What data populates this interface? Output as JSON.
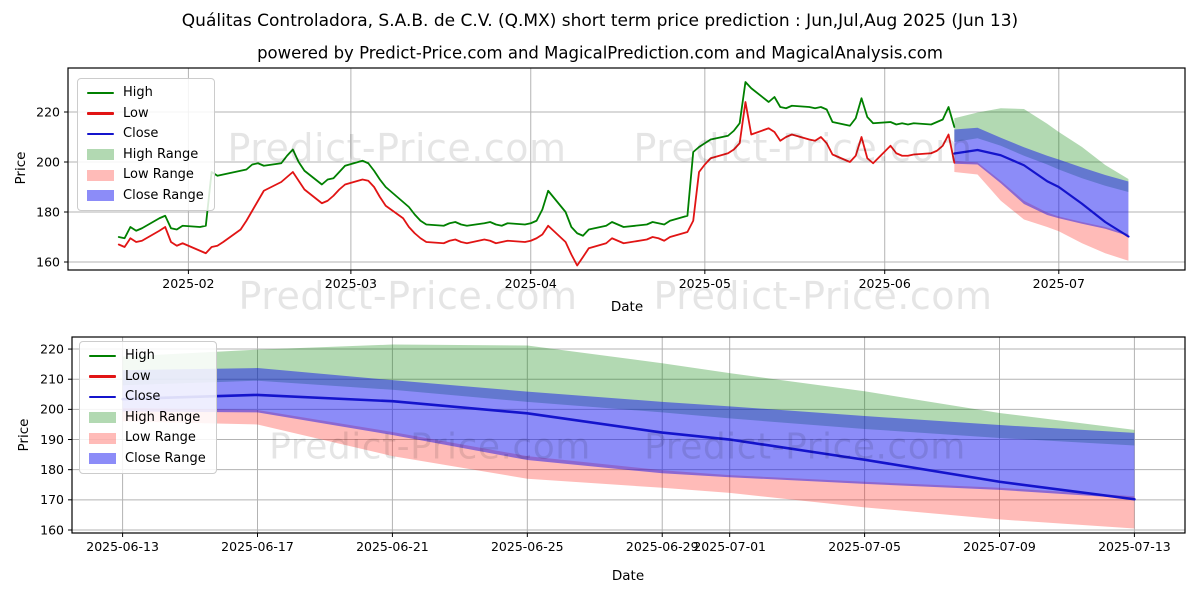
{
  "title": "Quálitas Controladora, S.A.B. de C.V. (Q.MX) short term price prediction : Jun,Jul,Aug 2025 (Jun 13)",
  "subtitle": "powered by Predict-Price.com and MagicalPrediction.com and MagicalAnalysis.com",
  "watermark": "Predict-Price.com",
  "colors": {
    "high_line": "#008000",
    "low_line": "#e11414",
    "close_line": "#1414cc",
    "high_range_fill": "rgba(0,128,0,0.30)",
    "low_range_fill": "rgba(255,30,20,0.30)",
    "close_range_fill": "rgba(10,10,240,0.47)",
    "grid": "#b3b3b3",
    "spine": "#000000",
    "text": "#000000"
  },
  "legend_items": [
    {
      "label": "High",
      "swatch": "line",
      "color_key": "high_line"
    },
    {
      "label": "Low",
      "swatch": "line",
      "color_key": "low_line"
    },
    {
      "label": "Close",
      "swatch": "line",
      "color_key": "close_line"
    },
    {
      "label": "High Range",
      "swatch": "patch",
      "color_key": "high_range_fill"
    },
    {
      "label": "Low Range",
      "swatch": "patch",
      "color_key": "low_range_fill"
    },
    {
      "label": "Close Range",
      "swatch": "patch",
      "color_key": "close_range_fill"
    }
  ],
  "chart_data": [
    {
      "type": "line",
      "name": "history-with-forecast",
      "xlabel": "Date",
      "ylabel": "Price",
      "ylim": [
        156.8,
        237.6
      ],
      "xlim": [
        "2025-01-11T06:00:00Z",
        "2025-07-22T18:00:00Z"
      ],
      "yticks": [
        160,
        180,
        200,
        220
      ],
      "xticks": [
        {
          "date": "2025-02-01",
          "label": "2025-02"
        },
        {
          "date": "2025-03-01",
          "label": "2025-03"
        },
        {
          "date": "2025-04-01",
          "label": "2025-04"
        },
        {
          "date": "2025-05-01",
          "label": "2025-05"
        },
        {
          "date": "2025-06-01",
          "label": "2025-06"
        },
        {
          "date": "2025-07-01",
          "label": "2025-07"
        }
      ],
      "grid": true,
      "legend_position": "upper-left",
      "history": {
        "dates": [
          "2025-01-20",
          "2025-01-21",
          "2025-01-22",
          "2025-01-23",
          "2025-01-24",
          "2025-01-27",
          "2025-01-28",
          "2025-01-29",
          "2025-01-30",
          "2025-01-31",
          "2025-02-03",
          "2025-02-04",
          "2025-02-05",
          "2025-02-06",
          "2025-02-07",
          "2025-02-10",
          "2025-02-11",
          "2025-02-12",
          "2025-02-13",
          "2025-02-14",
          "2025-02-17",
          "2025-02-18",
          "2025-02-19",
          "2025-02-20",
          "2025-02-21",
          "2025-02-24",
          "2025-02-25",
          "2025-02-26",
          "2025-02-27",
          "2025-02-28",
          "2025-03-03",
          "2025-03-04",
          "2025-03-05",
          "2025-03-06",
          "2025-03-07",
          "2025-03-10",
          "2025-03-11",
          "2025-03-12",
          "2025-03-13",
          "2025-03-14",
          "2025-03-17",
          "2025-03-18",
          "2025-03-19",
          "2025-03-20",
          "2025-03-21",
          "2025-03-24",
          "2025-03-25",
          "2025-03-26",
          "2025-03-27",
          "2025-03-28",
          "2025-03-31",
          "2025-04-01",
          "2025-04-02",
          "2025-04-03",
          "2025-04-04",
          "2025-04-07",
          "2025-04-08",
          "2025-04-09",
          "2025-04-10",
          "2025-04-11",
          "2025-04-14",
          "2025-04-15",
          "2025-04-16",
          "2025-04-17",
          "2025-04-21",
          "2025-04-22",
          "2025-04-23",
          "2025-04-24",
          "2025-04-25",
          "2025-04-28",
          "2025-04-29",
          "2025-04-30",
          "2025-05-01",
          "2025-05-02",
          "2025-05-05",
          "2025-05-06",
          "2025-05-07",
          "2025-05-08",
          "2025-05-09",
          "2025-05-12",
          "2025-05-13",
          "2025-05-14",
          "2025-05-15",
          "2025-05-16",
          "2025-05-19",
          "2025-05-20",
          "2025-05-21",
          "2025-05-22",
          "2025-05-23",
          "2025-05-26",
          "2025-05-27",
          "2025-05-28",
          "2025-05-29",
          "2025-05-30",
          "2025-06-02",
          "2025-06-03",
          "2025-06-04",
          "2025-06-05",
          "2025-06-06",
          "2025-06-09",
          "2025-06-10",
          "2025-06-11",
          "2025-06-12",
          "2025-06-13"
        ],
        "high": [
          170,
          169.5,
          174,
          172.5,
          173.5,
          177.5,
          178.5,
          173.5,
          173,
          174.5,
          174,
          174.5,
          196,
          194.5,
          195,
          196.5,
          197,
          199,
          199.5,
          198.5,
          199.5,
          202.5,
          205,
          200,
          196.5,
          191,
          193,
          193.5,
          196,
          198.5,
          200.5,
          199.5,
          196.5,
          193,
          190,
          184,
          182,
          179,
          176.5,
          175,
          174.5,
          175.5,
          176,
          175,
          174.5,
          175.5,
          176,
          175,
          174.5,
          175.5,
          175,
          175.5,
          176.5,
          181,
          188.5,
          180,
          174,
          171.5,
          170.5,
          173,
          174.5,
          176,
          175,
          174,
          175,
          176,
          175.5,
          175,
          176.5,
          178.5,
          204,
          206,
          207.5,
          209,
          210.5,
          212.5,
          215.5,
          232,
          229.5,
          224,
          226,
          222,
          221.5,
          222.5,
          222,
          221.5,
          222,
          221,
          216,
          214.5,
          217.5,
          225.5,
          218,
          215.5,
          216,
          215,
          215.5,
          215,
          215.5,
          215,
          216,
          217,
          222,
          214
        ],
        "low": [
          167,
          166,
          169.5,
          168,
          168.5,
          172.5,
          174,
          168,
          166.5,
          167.5,
          164.5,
          163.5,
          166,
          166.5,
          168,
          173,
          176.5,
          180.5,
          184.5,
          188.5,
          192,
          194,
          196,
          192.5,
          189,
          183.5,
          184.5,
          186.5,
          189,
          191,
          193,
          192.5,
          190,
          186,
          182.5,
          177.5,
          174,
          171.5,
          169.5,
          168,
          167.5,
          168.5,
          169,
          168,
          167.5,
          169,
          168.5,
          167.5,
          168,
          168.5,
          168,
          168.5,
          169.5,
          171,
          174.5,
          168,
          163,
          158.6,
          162,
          165.5,
          167.5,
          169.5,
          168.5,
          167.5,
          169,
          170,
          169.5,
          168.5,
          170,
          172,
          176.5,
          196,
          199,
          201.5,
          203.5,
          205,
          207.5,
          224,
          211,
          213.5,
          212,
          208.5,
          210,
          211,
          209,
          208.5,
          210,
          207.5,
          203,
          200,
          202.5,
          210,
          201.5,
          199.5,
          206.5,
          203.5,
          202.5,
          202.5,
          203,
          203.5,
          204.5,
          206.5,
          211,
          199.7
        ]
      },
      "forecast": {
        "dates": [
          "2025-06-13",
          "2025-06-17",
          "2025-06-21",
          "2025-06-25",
          "2025-06-29",
          "2025-07-01",
          "2025-07-05",
          "2025-07-09",
          "2025-07-13"
        ],
        "close": [
          203.4,
          204.8,
          202.7,
          198.7,
          192.3,
          190,
          183.3,
          176,
          170.2
        ],
        "high_range": {
          "upper": [
            217.5,
            219.8,
            221.5,
            221.2,
            215.3,
            212,
            206,
            198.8,
            193.2
          ],
          "lower": [
            208,
            209.5,
            206.5,
            202.5,
            199,
            197,
            193.5,
            190.5,
            188
          ]
        },
        "low_range": {
          "upper": [
            200.5,
            199.8,
            192.5,
            184.5,
            179.8,
            178.2,
            176,
            174,
            171.2
          ],
          "lower": [
            196,
            195,
            184.5,
            177,
            174,
            172.3,
            167.5,
            163.5,
            160.5
          ]
        },
        "close_range": {
          "upper": [
            213,
            213.7,
            209.7,
            205.9,
            202.5,
            201,
            197.8,
            194.8,
            192.2
          ],
          "lower": [
            199.3,
            199,
            191.5,
            183.2,
            178.8,
            177.5,
            175.3,
            173.3,
            170.4
          ]
        }
      }
    },
    {
      "type": "line",
      "name": "forecast-detail",
      "note": "zoomed view of the same forecast bands as chart 0",
      "xlabel": "Date",
      "ylabel": "Price",
      "ylim": [
        159.0,
        224.0
      ],
      "xlim": [
        "2025-06-11T12:00:00Z",
        "2025-07-14T12:00:00Z"
      ],
      "yticks": [
        160,
        170,
        180,
        190,
        200,
        210,
        220
      ],
      "xticks": [
        {
          "date": "2025-06-13",
          "label": "2025-06-13"
        },
        {
          "date": "2025-06-17",
          "label": "2025-06-17"
        },
        {
          "date": "2025-06-21",
          "label": "2025-06-21"
        },
        {
          "date": "2025-06-25",
          "label": "2025-06-25"
        },
        {
          "date": "2025-06-29",
          "label": "2025-06-29"
        },
        {
          "date": "2025-07-01",
          "label": "2025-07-01"
        },
        {
          "date": "2025-07-05",
          "label": "2025-07-05"
        },
        {
          "date": "2025-07-09",
          "label": "2025-07-09"
        },
        {
          "date": "2025-07-13",
          "label": "2025-07-13"
        }
      ],
      "grid": true,
      "legend_position": "upper-left"
    }
  ]
}
